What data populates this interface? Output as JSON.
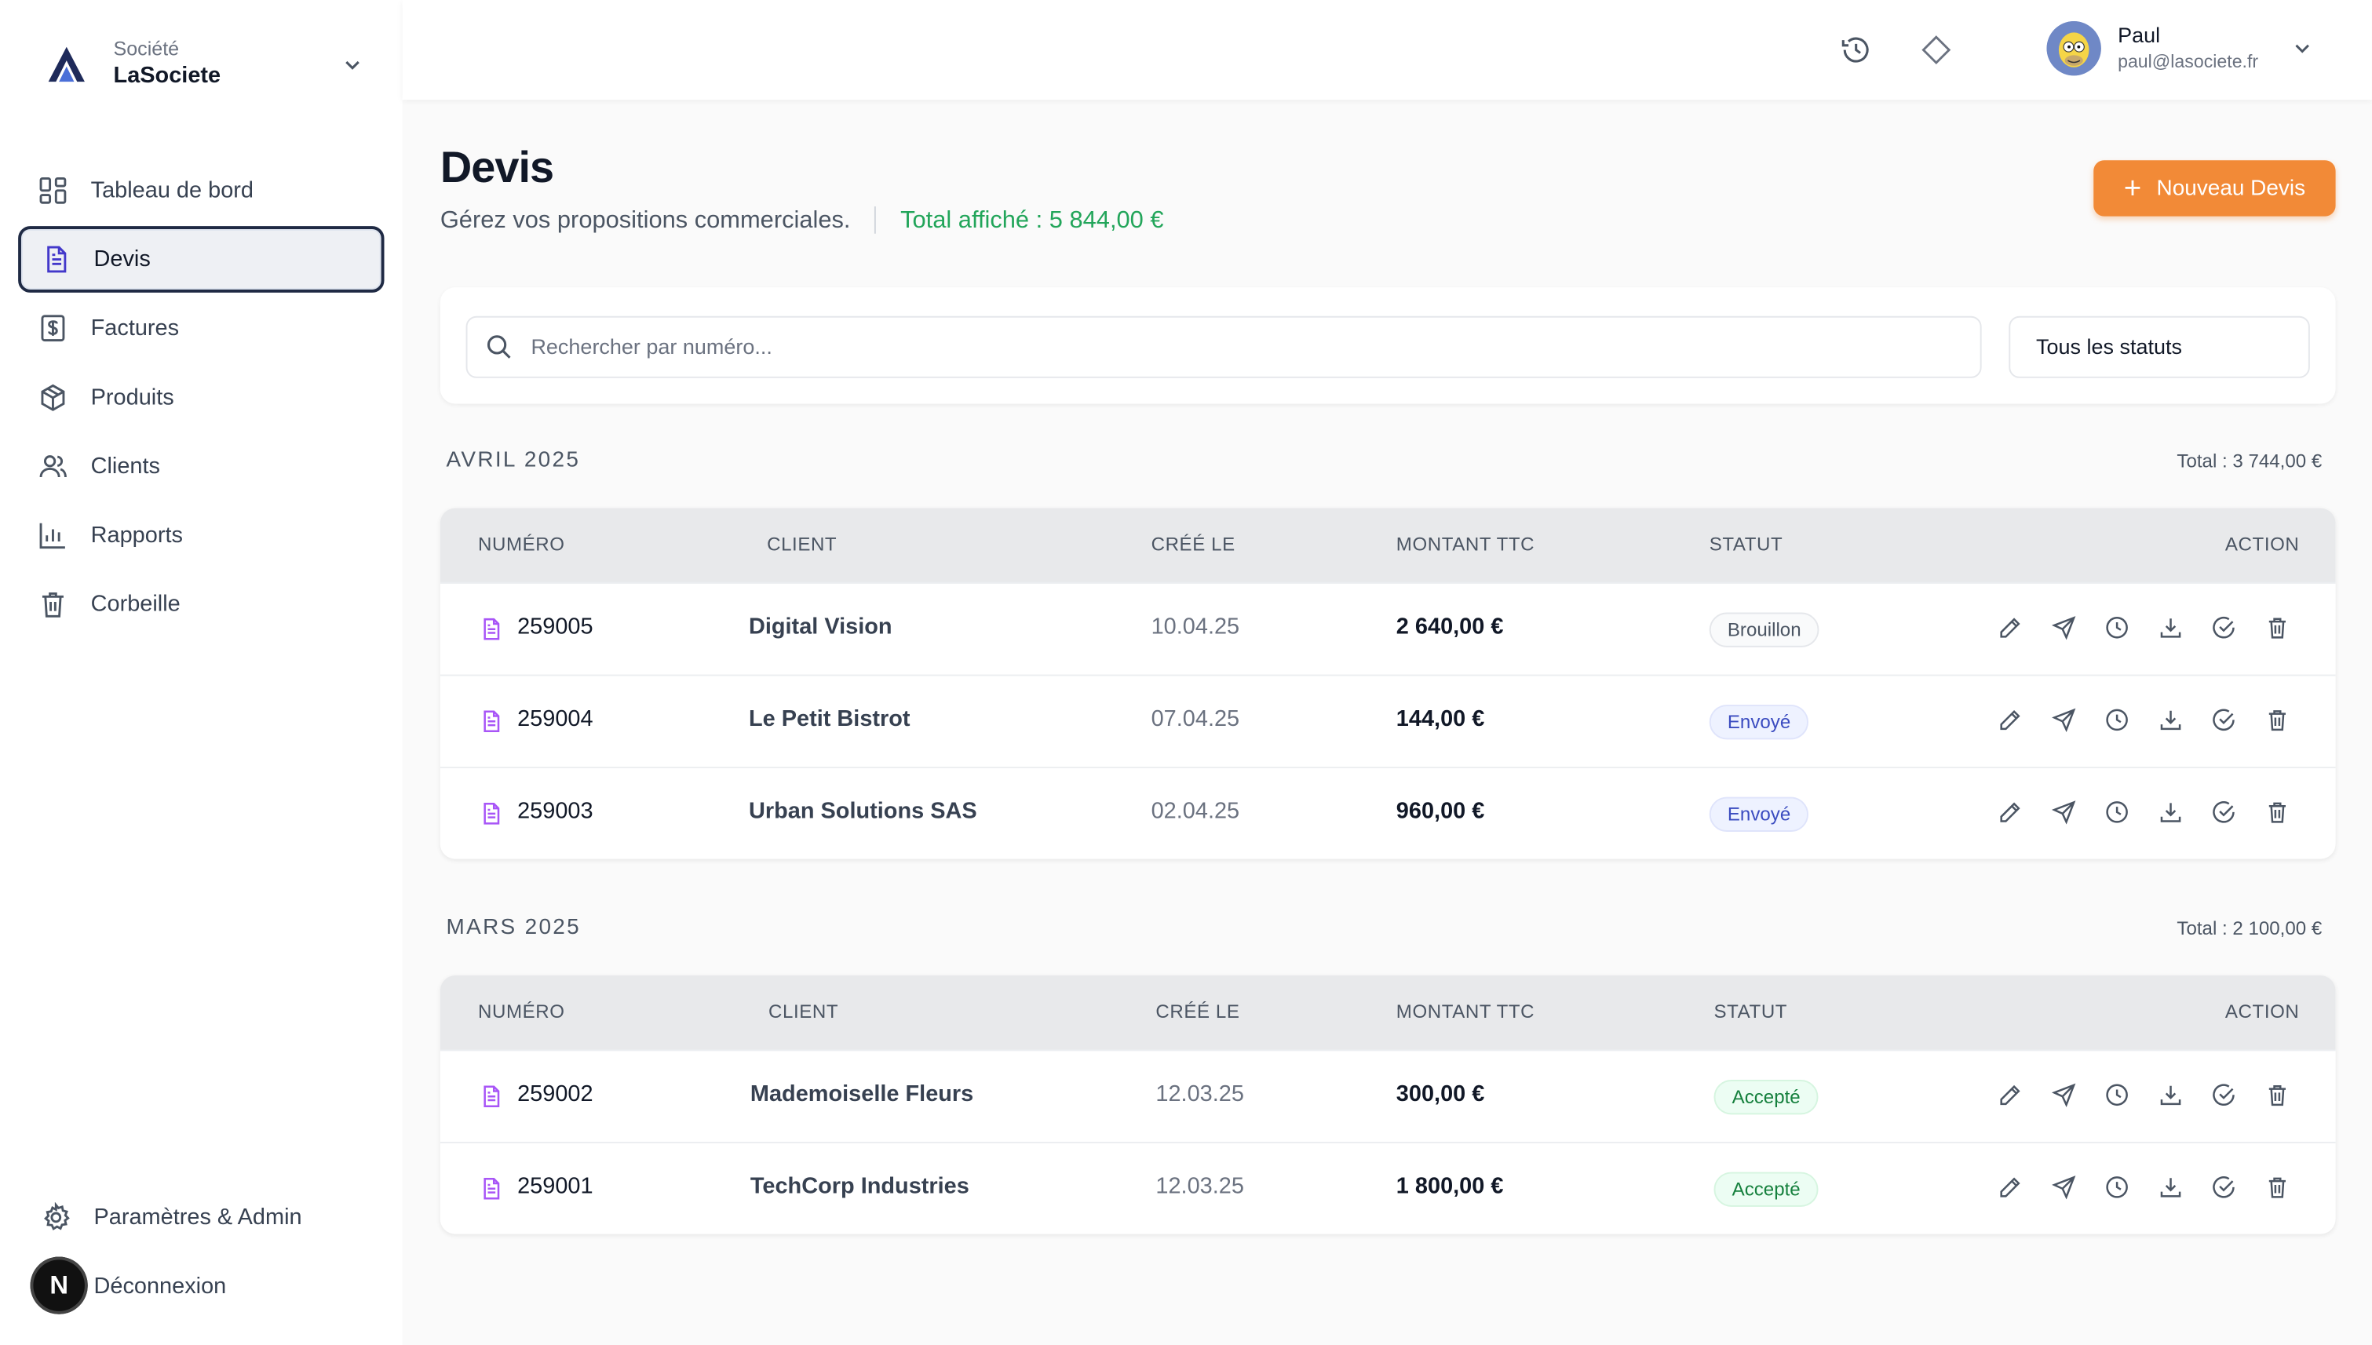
{
  "brand": {
    "label": "Société",
    "name": "LaSociete"
  },
  "sidebar": {
    "items": [
      {
        "label": "Tableau de bord",
        "icon": "dashboard-icon"
      },
      {
        "label": "Devis",
        "icon": "document-icon",
        "active": true
      },
      {
        "label": "Factures",
        "icon": "invoice-icon"
      },
      {
        "label": "Produits",
        "icon": "package-icon"
      },
      {
        "label": "Clients",
        "icon": "users-icon"
      },
      {
        "label": "Rapports",
        "icon": "bar-chart-icon"
      },
      {
        "label": "Corbeille",
        "icon": "trash-icon"
      }
    ],
    "bottom": [
      {
        "label": "Paramètres & Admin",
        "icon": "gear-icon"
      },
      {
        "label": "Déconnexion",
        "icon": "logout-icon"
      }
    ],
    "badge": "N"
  },
  "user": {
    "name": "Paul",
    "email": "paul@lasociete.fr"
  },
  "page": {
    "title": "Devis",
    "subtitle": "Gérez vos propositions commerciales.",
    "total": "Total affiché : 5 844,00 €",
    "new_button": "Nouveau Devis"
  },
  "filters": {
    "search_placeholder": "Rechercher par numéro...",
    "status": "Tous les statuts"
  },
  "columns": {
    "numero": "NUMÉRO",
    "client": "CLIENT",
    "cree_le": "CRÉÉ LE",
    "montant": "MONTANT TTC",
    "statut": "STATUT",
    "action": "ACTION"
  },
  "groups": [
    {
      "title": "AVRIL 2025",
      "total": "Total : 3 744,00 €",
      "rows": [
        {
          "numero": "259005",
          "client": "Digital Vision",
          "date": "10.04.25",
          "montant": "2 640,00 €",
          "statut": "Brouillon",
          "statut_kind": "brouillon"
        },
        {
          "numero": "259004",
          "client": "Le Petit Bistrot",
          "date": "07.04.25",
          "montant": "144,00 €",
          "statut": "Envoyé",
          "statut_kind": "envoye"
        },
        {
          "numero": "259003",
          "client": "Urban Solutions SAS",
          "date": "02.04.25",
          "montant": "960,00 €",
          "statut": "Envoyé",
          "statut_kind": "envoye"
        }
      ]
    },
    {
      "title": "MARS 2025",
      "total": "Total : 2 100,00 €",
      "rows": [
        {
          "numero": "259002",
          "client": "Mademoiselle Fleurs",
          "date": "12.03.25",
          "montant": "300,00 €",
          "statut": "Accepté",
          "statut_kind": "accepte"
        },
        {
          "numero": "259001",
          "client": "TechCorp Industries",
          "date": "12.03.25",
          "montant": "1 800,00 €",
          "statut": "Accepté",
          "statut_kind": "accepte"
        }
      ]
    }
  ],
  "row_actions": [
    "edit-icon",
    "send-icon",
    "history-icon",
    "download-icon",
    "check-circle-icon",
    "trash-icon"
  ],
  "colors": {
    "accent": "#f28a37",
    "total_green": "#22a55a",
    "doc_icon": "#a855f7"
  }
}
